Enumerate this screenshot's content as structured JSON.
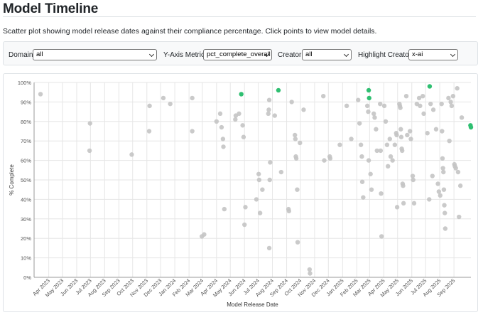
{
  "page": {
    "title": "Model Timeline",
    "description": "Scatter plot showing model release dates against their compliance percentage. Click points to view model details."
  },
  "filters": {
    "domain": {
      "label": "Domain:",
      "value": "all"
    },
    "y_metric": {
      "label": "Y-Axis Metric:",
      "value": "pct_complete_overall"
    },
    "creator": {
      "label": "Creator:",
      "value": "all"
    },
    "highlight": {
      "label": "Highlight Creator:",
      "value": "x-ai"
    }
  },
  "colors": {
    "default_point": "#c4c4c4",
    "highlight_point": "#2fbf71",
    "grid": "#e6e6e6"
  },
  "chart_data": {
    "type": "scatter",
    "xlabel": "Model Release Date",
    "ylabel": "% Complete",
    "xlim": [
      "2023-02-28",
      "2025-10-08"
    ],
    "ylim": [
      0,
      100
    ],
    "grid": true,
    "x_ticks": [
      {
        "date": "2023-04-01",
        "label": "Apr 2023"
      },
      {
        "date": "2023-05-01",
        "label": "May 2023"
      },
      {
        "date": "2023-06-01",
        "label": "Jun 2023"
      },
      {
        "date": "2023-07-01",
        "label": "Jul 2023"
      },
      {
        "date": "2023-08-01",
        "label": "Aug 2023"
      },
      {
        "date": "2023-09-01",
        "label": "Sep 2023"
      },
      {
        "date": "2023-10-01",
        "label": "Oct 2023"
      },
      {
        "date": "2023-11-01",
        "label": "Nov 2023"
      },
      {
        "date": "2023-12-01",
        "label": "Dec 2023"
      },
      {
        "date": "2024-01-01",
        "label": "Jan 2024"
      },
      {
        "date": "2024-02-01",
        "label": "Feb 2024"
      },
      {
        "date": "2024-03-01",
        "label": "Mar 2024"
      },
      {
        "date": "2024-04-01",
        "label": "Apr 2024"
      },
      {
        "date": "2024-05-01",
        "label": "May 2024"
      },
      {
        "date": "2024-06-01",
        "label": "Jun 2024"
      },
      {
        "date": "2024-07-01",
        "label": "Jul 2024"
      },
      {
        "date": "2024-08-01",
        "label": "Aug 2024"
      },
      {
        "date": "2024-09-01",
        "label": "Sep 2024"
      },
      {
        "date": "2024-10-01",
        "label": "Oct 2024"
      },
      {
        "date": "2024-11-01",
        "label": "Nov 2024"
      },
      {
        "date": "2024-12-01",
        "label": "Dec 2024"
      },
      {
        "date": "2025-01-01",
        "label": "Jan 2025"
      },
      {
        "date": "2025-02-01",
        "label": "Feb 2025"
      },
      {
        "date": "2025-03-01",
        "label": "Mar 2025"
      },
      {
        "date": "2025-04-01",
        "label": "Apr 2025"
      },
      {
        "date": "2025-05-01",
        "label": "May 2025"
      },
      {
        "date": "2025-06-01",
        "label": "Jun 2025"
      },
      {
        "date": "2025-07-01",
        "label": "Jul 2025"
      },
      {
        "date": "2025-08-01",
        "label": "Aug 2025"
      },
      {
        "date": "2025-09-01",
        "label": "Sep 2025"
      }
    ],
    "y_ticks": [
      {
        "value": 0,
        "label": "0%"
      },
      {
        "value": 10,
        "label": "10%"
      },
      {
        "value": 20,
        "label": "20%"
      },
      {
        "value": 30,
        "label": "30%"
      },
      {
        "value": 40,
        "label": "40%"
      },
      {
        "value": 50,
        "label": "50%"
      },
      {
        "value": 60,
        "label": "60%"
      },
      {
        "value": 70,
        "label": "70%"
      },
      {
        "value": 80,
        "label": "80%"
      },
      {
        "value": 90,
        "label": "90%"
      },
      {
        "value": 100,
        "label": "100%"
      }
    ],
    "series": [
      {
        "role": "other",
        "points": [
          {
            "x": "2023-03-14",
            "y": 94
          },
          {
            "x": "2023-06-30",
            "y": 79
          },
          {
            "x": "2023-06-29",
            "y": 65
          },
          {
            "x": "2023-09-29",
            "y": 63
          },
          {
            "x": "2023-11-07",
            "y": 88
          },
          {
            "x": "2023-11-06",
            "y": 75
          },
          {
            "x": "2023-12-07",
            "y": 92
          },
          {
            "x": "2023-12-22",
            "y": 89
          },
          {
            "x": "2024-02-08",
            "y": 92
          },
          {
            "x": "2024-02-08",
            "y": 75
          },
          {
            "x": "2024-02-29",
            "y": 21
          },
          {
            "x": "2024-03-05",
            "y": 22
          },
          {
            "x": "2024-04-01",
            "y": 80
          },
          {
            "x": "2024-04-09",
            "y": 84
          },
          {
            "x": "2024-04-12",
            "y": 77
          },
          {
            "x": "2024-04-15",
            "y": 71
          },
          {
            "x": "2024-04-16",
            "y": 67
          },
          {
            "x": "2024-04-18",
            "y": 35
          },
          {
            "x": "2024-05-12",
            "y": 81
          },
          {
            "x": "2024-05-13",
            "y": 83
          },
          {
            "x": "2024-05-20",
            "y": 84
          },
          {
            "x": "2024-05-28",
            "y": 78
          },
          {
            "x": "2024-05-30",
            "y": 72
          },
          {
            "x": "2024-06-03",
            "y": 36
          },
          {
            "x": "2024-06-01",
            "y": 27
          },
          {
            "x": "2024-06-27",
            "y": 40
          },
          {
            "x": "2024-07-02",
            "y": 53
          },
          {
            "x": "2024-07-03",
            "y": 50
          },
          {
            "x": "2024-07-05",
            "y": 33
          },
          {
            "x": "2024-07-10",
            "y": 45
          },
          {
            "x": "2024-07-23",
            "y": 84
          },
          {
            "x": "2024-07-24",
            "y": 86
          },
          {
            "x": "2024-07-25",
            "y": 91
          },
          {
            "x": "2024-07-27",
            "y": 59
          },
          {
            "x": "2024-07-26",
            "y": 50
          },
          {
            "x": "2024-07-25",
            "y": 15
          },
          {
            "x": "2024-08-06",
            "y": 83
          },
          {
            "x": "2024-08-20",
            "y": 54
          },
          {
            "x": "2024-09-05",
            "y": 35
          },
          {
            "x": "2024-09-06",
            "y": 34
          },
          {
            "x": "2024-09-12",
            "y": 90
          },
          {
            "x": "2024-09-19",
            "y": 73
          },
          {
            "x": "2024-09-20",
            "y": 71
          },
          {
            "x": "2024-09-21",
            "y": 62
          },
          {
            "x": "2024-09-22",
            "y": 61
          },
          {
            "x": "2024-09-24",
            "y": 45
          },
          {
            "x": "2024-09-25",
            "y": 18
          },
          {
            "x": "2024-09-30",
            "y": 69
          },
          {
            "x": "2024-10-08",
            "y": 86
          },
          {
            "x": "2024-10-21",
            "y": 4
          },
          {
            "x": "2024-10-22",
            "y": 2
          },
          {
            "x": "2024-11-20",
            "y": 93
          },
          {
            "x": "2024-11-22",
            "y": 60
          },
          {
            "x": "2024-12-04",
            "y": 62
          },
          {
            "x": "2024-12-05",
            "y": 61
          },
          {
            "x": "2024-12-26",
            "y": 68
          },
          {
            "x": "2025-01-10",
            "y": 88
          },
          {
            "x": "2025-01-20",
            "y": 71
          },
          {
            "x": "2025-02-04",
            "y": 91
          },
          {
            "x": "2025-02-07",
            "y": 79
          },
          {
            "x": "2025-02-10",
            "y": 68
          },
          {
            "x": "2025-02-12",
            "y": 62
          },
          {
            "x": "2025-02-13",
            "y": 49
          },
          {
            "x": "2025-02-15",
            "y": 41
          },
          {
            "x": "2025-02-24",
            "y": 88
          },
          {
            "x": "2025-02-26",
            "y": 85
          },
          {
            "x": "2025-02-27",
            "y": 60
          },
          {
            "x": "2025-03-03",
            "y": 53
          },
          {
            "x": "2025-03-05",
            "y": 45
          },
          {
            "x": "2025-03-10",
            "y": 84
          },
          {
            "x": "2025-03-12",
            "y": 82
          },
          {
            "x": "2025-03-15",
            "y": 76
          },
          {
            "x": "2025-03-17",
            "y": 65
          },
          {
            "x": "2025-03-24",
            "y": 89
          },
          {
            "x": "2025-03-25",
            "y": 65
          },
          {
            "x": "2025-03-26",
            "y": 43
          },
          {
            "x": "2025-03-27",
            "y": 21
          },
          {
            "x": "2025-04-02",
            "y": 88
          },
          {
            "x": "2025-04-05",
            "y": 80
          },
          {
            "x": "2025-04-08",
            "y": 68
          },
          {
            "x": "2025-04-10",
            "y": 57
          },
          {
            "x": "2025-04-14",
            "y": 71
          },
          {
            "x": "2025-04-16",
            "y": 62
          },
          {
            "x": "2025-04-20",
            "y": 60
          },
          {
            "x": "2025-04-25",
            "y": 68
          },
          {
            "x": "2025-04-28",
            "y": 74
          },
          {
            "x": "2025-04-29",
            "y": 73
          },
          {
            "x": "2025-04-30",
            "y": 36
          },
          {
            "x": "2025-05-05",
            "y": 89
          },
          {
            "x": "2025-05-06",
            "y": 88
          },
          {
            "x": "2025-05-07",
            "y": 87
          },
          {
            "x": "2025-05-08",
            "y": 76
          },
          {
            "x": "2025-05-09",
            "y": 72
          },
          {
            "x": "2025-05-10",
            "y": 66
          },
          {
            "x": "2025-05-11",
            "y": 65
          },
          {
            "x": "2025-05-12",
            "y": 48
          },
          {
            "x": "2025-05-13",
            "y": 47
          },
          {
            "x": "2025-05-14",
            "y": 38
          },
          {
            "x": "2025-05-20",
            "y": 93
          },
          {
            "x": "2025-05-22",
            "y": 73
          },
          {
            "x": "2025-05-28",
            "y": 75
          },
          {
            "x": "2025-05-30",
            "y": 71
          },
          {
            "x": "2025-06-03",
            "y": 52
          },
          {
            "x": "2025-06-04",
            "y": 50
          },
          {
            "x": "2025-06-06",
            "y": 38
          },
          {
            "x": "2025-06-12",
            "y": 89
          },
          {
            "x": "2025-06-17",
            "y": 92
          },
          {
            "x": "2025-06-19",
            "y": 88
          },
          {
            "x": "2025-06-25",
            "y": 93
          },
          {
            "x": "2025-06-27",
            "y": 84
          },
          {
            "x": "2025-07-05",
            "y": 74
          },
          {
            "x": "2025-07-09",
            "y": 40
          },
          {
            "x": "2025-07-12",
            "y": 89
          },
          {
            "x": "2025-07-16",
            "y": 52
          },
          {
            "x": "2025-07-18",
            "y": 86
          },
          {
            "x": "2025-07-24",
            "y": 76
          },
          {
            "x": "2025-07-28",
            "y": 48
          },
          {
            "x": "2025-07-30",
            "y": 44
          },
          {
            "x": "2025-08-02",
            "y": 42
          },
          {
            "x": "2025-08-05",
            "y": 89
          },
          {
            "x": "2025-08-06",
            "y": 75
          },
          {
            "x": "2025-08-07",
            "y": 61
          },
          {
            "x": "2025-08-08",
            "y": 56
          },
          {
            "x": "2025-08-09",
            "y": 54
          },
          {
            "x": "2025-08-10",
            "y": 45
          },
          {
            "x": "2025-08-11",
            "y": 37
          },
          {
            "x": "2025-08-12",
            "y": 33
          },
          {
            "x": "2025-08-13",
            "y": 25
          },
          {
            "x": "2025-08-20",
            "y": 92
          },
          {
            "x": "2025-08-22",
            "y": 70
          },
          {
            "x": "2025-08-25",
            "y": 90
          },
          {
            "x": "2025-08-27",
            "y": 88
          },
          {
            "x": "2025-08-30",
            "y": 93
          },
          {
            "x": "2025-09-02",
            "y": 58
          },
          {
            "x": "2025-09-03",
            "y": 57
          },
          {
            "x": "2025-09-05",
            "y": 56
          },
          {
            "x": "2025-09-08",
            "y": 97
          },
          {
            "x": "2025-09-10",
            "y": 54
          },
          {
            "x": "2025-09-12",
            "y": 31
          },
          {
            "x": "2025-09-15",
            "y": 47
          },
          {
            "x": "2025-09-18",
            "y": 82
          }
        ]
      },
      {
        "role": "highlight",
        "points": [
          {
            "x": "2024-05-25",
            "y": 94
          },
          {
            "x": "2024-08-14",
            "y": 96
          },
          {
            "x": "2025-02-27",
            "y": 96
          },
          {
            "x": "2025-02-28",
            "y": 92
          },
          {
            "x": "2025-07-10",
            "y": 98
          },
          {
            "x": "2025-10-07",
            "y": 78
          },
          {
            "x": "2025-10-08",
            "y": 77
          }
        ]
      }
    ]
  }
}
